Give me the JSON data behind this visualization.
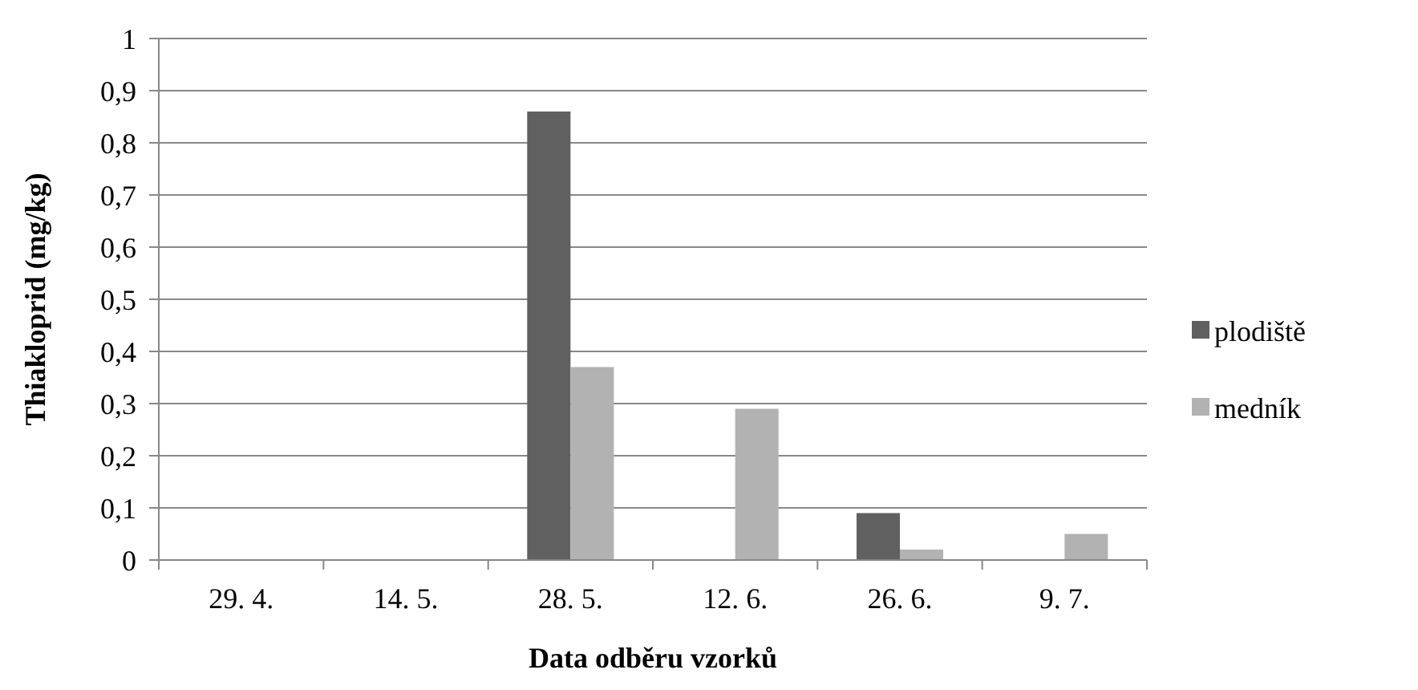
{
  "chart_data": {
    "type": "bar",
    "xlabel": "Data odběru vzorků",
    "ylabel": "Thiakloprid (mg/kg)",
    "categories": [
      "29. 4.",
      "14. 5.",
      "28. 5.",
      "12. 6.",
      "26. 6.",
      "9. 7."
    ],
    "series": [
      {
        "name": "plodiště",
        "color": "#606060",
        "values": [
          0,
          0,
          0.86,
          0,
          0.09,
          0
        ]
      },
      {
        "name": "medník",
        "color": "#b2b2b2",
        "values": [
          0,
          0,
          0.37,
          0.29,
          0.02,
          0.05
        ]
      }
    ],
    "ylim": [
      0,
      1
    ],
    "yticks": [
      0,
      {
        "value": 0.1,
        "label": "0,1"
      },
      {
        "value": 0.2,
        "label": "0,2"
      },
      {
        "value": 0.3,
        "label": "0,3"
      },
      {
        "value": 0.4,
        "label": "0,4"
      },
      {
        "value": 0.5,
        "label": "0,5"
      },
      {
        "value": 0.6,
        "label": "0,6"
      },
      {
        "value": 0.7,
        "label": "0,7"
      },
      {
        "value": 0.8,
        "label": "0,8"
      },
      {
        "value": 0.9,
        "label": "0,9"
      },
      1
    ],
    "grid": "y",
    "legend": "right"
  }
}
